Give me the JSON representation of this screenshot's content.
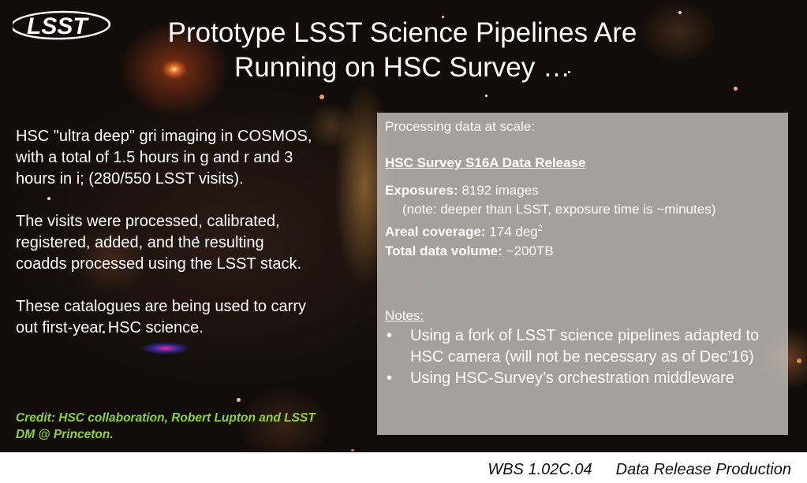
{
  "logo": {
    "text": "LSST"
  },
  "title": {
    "line1": "Prototype LSST Science Pipelines Are",
    "line2": "Running on HSC Survey …"
  },
  "left": {
    "paragraphs": [
      "HSC \"ultra deep\" gri imaging in COSMOS, with a total of 1.5 hours in g and r and 3 hours in i; (280/550 LSST visits).",
      "The visits were processed, calibrated, registered, added, and the resulting coadds processed using the LSST stack.",
      "These catalogues are being used to carry out first-year HSC science."
    ],
    "credit": "Credit: HSC collaboration, Robert Lupton and LSST DM @ Princeton."
  },
  "panel": {
    "lead": "Processing data at scale:",
    "release": "HSC Survey S16A Data Release",
    "exposures_label": "Exposures:",
    "exposures_value": " 8192 images",
    "exposures_note": "(note: deeper than LSST, exposure time is ~minutes)",
    "areal_label": "Areal coverage:",
    "areal_value": " 174 deg",
    "areal_sup": "2",
    "volume_label": "Total data volume:",
    "volume_value": " ~200TB",
    "notes_head": "Notes:",
    "bullet_glyph": "•",
    "notes": [
      "Using a fork of LSST science pipelines adapted to HSC camera (will not be necessary as of Dec’16)",
      "Using HSC-Survey’s orchestration middleware"
    ]
  },
  "footer": {
    "wbs": "WBS 1.02C.04",
    "name": "Data Release Production"
  },
  "colors": {
    "credit": "#8fd13a",
    "panel_bg": "#c4c1bc",
    "sky": "#120c0a"
  }
}
